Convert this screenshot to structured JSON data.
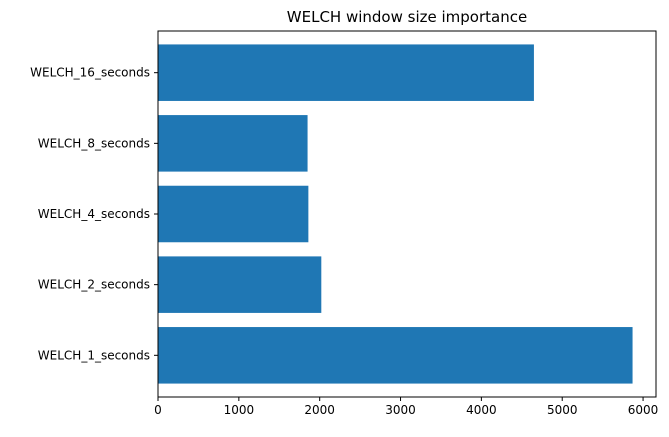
{
  "chart_data": {
    "type": "bar",
    "orientation": "horizontal",
    "title": "WELCH window size importance",
    "xlabel": "",
    "ylabel": "",
    "categories": [
      "WELCH_1_seconds",
      "WELCH_2_seconds",
      "WELCH_4_seconds",
      "WELCH_8_seconds",
      "WELCH_16_seconds"
    ],
    "values": [
      5870,
      2020,
      1860,
      1850,
      4650
    ],
    "xlim": [
      0,
      6160
    ],
    "xticks": [
      0,
      1000,
      2000,
      3000,
      4000,
      5000,
      6000
    ],
    "grid": false,
    "bar_color": "#1f77b4"
  }
}
